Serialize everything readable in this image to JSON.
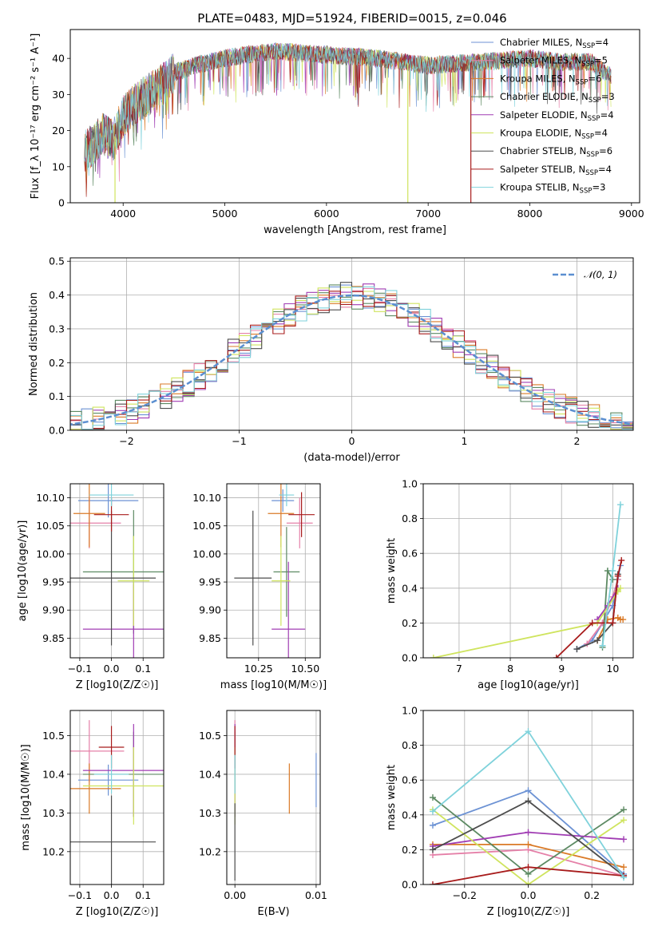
{
  "colors": [
    "#6c92d4",
    "#e580a8",
    "#da7a27",
    "#5d8a63",
    "#a03cb3",
    "#cfe45e",
    "#4d4d4d",
    "#a81c1c",
    "#7fd2db"
  ],
  "chart_data": [
    {
      "type": "line",
      "title": "PLATE=0483, MJD=51924, FIBERID=0015, z=0.046",
      "xlabel": "wavelength [Angstrom, rest frame]",
      "ylabel": "Flux [f_λ 10⁻¹⁷ erg cm⁻² s⁻¹ A⁻¹]",
      "xlim": [
        3480,
        9080
      ],
      "ylim": [
        0,
        48
      ],
      "xticks": [
        4000,
        5000,
        6000,
        7000,
        8000,
        9000
      ],
      "yticks": [
        0,
        10,
        20,
        30,
        40
      ],
      "legend_position": "top-right",
      "continuum": {
        "x": [
          3620,
          3700,
          3800,
          3900,
          4000,
          4100,
          4200,
          4300,
          4400,
          4500,
          4700,
          5000,
          5200,
          5500,
          6000,
          6500,
          7000,
          7500,
          8000,
          8300,
          8600,
          8800
        ],
        "y": [
          14,
          16,
          19,
          17,
          24,
          27,
          29,
          31,
          33,
          36,
          38,
          40,
          41,
          42,
          41,
          40,
          38,
          39,
          40,
          39,
          39,
          35
        ]
      },
      "dropouts": [
        {
          "x": 3920,
          "ymin": 0,
          "series": 5
        },
        {
          "x": 6800,
          "ymin": 0,
          "series": 5
        },
        {
          "x": 7420,
          "ymin": 0,
          "series": 7
        }
      ],
      "series": [
        {
          "name": "Chabrier MILES, N",
          "sub": "SSP",
          "n": "=4"
        },
        {
          "name": "Salpeter MILES, N",
          "sub": "SSP",
          "n": "=5"
        },
        {
          "name": "Kroupa MILES, N",
          "sub": "SSP",
          "n": "=6"
        },
        {
          "name": "Chabrier ELODIE, N",
          "sub": "SSP",
          "n": "=3"
        },
        {
          "name": "Salpeter ELODIE, N",
          "sub": "SSP",
          "n": "=4"
        },
        {
          "name": "Kroupa ELODIE, N",
          "sub": "SSP",
          "n": "=4"
        },
        {
          "name": "Chabrier STELIB, N",
          "sub": "SSP",
          "n": "=6"
        },
        {
          "name": "Salpeter STELIB, N",
          "sub": "SSP",
          "n": "=4"
        },
        {
          "name": "Kroupa STELIB, N",
          "sub": "SSP",
          "n": "=3"
        }
      ]
    },
    {
      "type": "histogram",
      "xlabel": "(data-model)/error",
      "ylabel": "Normed distribution",
      "xlim": [
        -2.5,
        2.5
      ],
      "ylim": [
        0,
        0.51
      ],
      "xticks": [
        -2,
        -1,
        0,
        1,
        2
      ],
      "yticks": [
        0.0,
        0.1,
        0.2,
        0.3,
        0.4,
        0.5
      ],
      "grid": true,
      "legend_position": "top-right",
      "reference": {
        "label": "𝒩(0, 1)",
        "mean": 0,
        "sigma": 1
      },
      "bin_width": 0.1
    },
    {
      "type": "errorbar",
      "xlabel": "Z [log10(Z/Z☉)]",
      "ylabel": "age  [log10(age/yr)]",
      "xlim": [
        -0.13,
        0.165
      ],
      "ylim": [
        9.815,
        10.125
      ],
      "xticks": [
        -0.1,
        0.0,
        0.1
      ],
      "yticks": [
        9.85,
        9.9,
        9.95,
        10.0,
        10.05,
        10.1
      ],
      "grid": true,
      "points": [
        {
          "x": -0.01,
          "y": 10.095,
          "xerr": 0.095,
          "yerr": 0.03
        },
        {
          "x": -0.07,
          "y": 10.055,
          "xerr": 0.1,
          "yerr": 0.045
        },
        {
          "x": -0.07,
          "y": 10.072,
          "xerr": 0.05,
          "yerr": 0.06
        },
        {
          "x": 0.07,
          "y": 9.968,
          "xerr": 0.16,
          "yerr": 0.11
        },
        {
          "x": 0.07,
          "y": 9.866,
          "xerr": 0.16,
          "yerr": 0.08
        },
        {
          "x": 0.07,
          "y": 9.952,
          "xerr": 0.05,
          "yerr": 0.08
        },
        {
          "x": 0.0,
          "y": 9.957,
          "xerr": 0.14,
          "yerr": 0.12
        },
        {
          "x": 0.0,
          "y": 10.07,
          "xerr": 0.055,
          "yerr": 0.03
        },
        {
          "x": 0.0,
          "y": 10.105,
          "xerr": 0.07,
          "yerr": 0.02
        }
      ]
    },
    {
      "type": "errorbar",
      "xlabel": "mass [log10(M/M☉)]",
      "ylabel": "",
      "xlim": [
        10.08,
        10.58
      ],
      "ylim": [
        9.815,
        10.125
      ],
      "xticks": [
        10.25,
        10.5
      ],
      "yticks": [
        9.85,
        9.9,
        9.95,
        10.0,
        10.05,
        10.1
      ],
      "grid": true,
      "points": [
        {
          "x": 10.38,
          "y": 10.095,
          "xerr": 0.06,
          "yerr": 0.02
        },
        {
          "x": 10.47,
          "y": 10.055,
          "xerr": 0.07,
          "yerr": 0.045
        },
        {
          "x": 10.37,
          "y": 10.072,
          "xerr": 0.07,
          "yerr": 0.06
        },
        {
          "x": 10.4,
          "y": 9.968,
          "xerr": 0.07,
          "yerr": 0.08
        },
        {
          "x": 10.41,
          "y": 9.866,
          "xerr": 0.09,
          "yerr": 0.12
        },
        {
          "x": 10.37,
          "y": 9.952,
          "xerr": 0.05,
          "yerr": 0.08
        },
        {
          "x": 10.22,
          "y": 9.957,
          "xerr": 0.1,
          "yerr": 0.12
        },
        {
          "x": 10.48,
          "y": 10.07,
          "xerr": 0.07,
          "yerr": 0.04
        },
        {
          "x": 10.4,
          "y": 10.105,
          "xerr": 0.04,
          "yerr": 0.02
        }
      ]
    },
    {
      "type": "line",
      "xlabel": "age  [log10(age/yr)]",
      "ylabel": "mass weight",
      "xlim": [
        6.3,
        10.4
      ],
      "ylim": [
        0,
        1.0
      ],
      "xticks": [
        7,
        8,
        9,
        10
      ],
      "yticks": [
        0.0,
        0.2,
        0.4,
        0.6,
        0.8,
        1.0
      ],
      "grid": true,
      "series": [
        {
          "x": [
            9.3,
            9.6,
            9.8,
            10.0,
            10.1,
            10.15
          ],
          "y": [
            0.05,
            0.1,
            0.2,
            0.3,
            0.45,
            0.53
          ]
        },
        {
          "x": [
            9.5,
            9.8,
            10.0,
            10.1
          ],
          "y": [
            0.08,
            0.2,
            0.35,
            0.45
          ]
        },
        {
          "x": [
            9.7,
            9.9,
            10.1,
            10.15,
            10.2
          ],
          "y": [
            0.1,
            0.22,
            0.23,
            0.22,
            0.22
          ]
        },
        {
          "x": [
            9.8,
            9.9,
            10.0
          ],
          "y": [
            0.06,
            0.5,
            0.45
          ]
        },
        {
          "x": [
            9.7,
            9.9,
            10.1
          ],
          "y": [
            0.22,
            0.3,
            0.4
          ]
        },
        {
          "x": [
            6.5,
            9.7,
            10.1,
            10.15
          ],
          "y": [
            0.0,
            0.2,
            0.38,
            0.4
          ]
        },
        {
          "x": [
            9.3,
            9.7,
            10.0,
            10.1
          ],
          "y": [
            0.05,
            0.1,
            0.2,
            0.48
          ]
        },
        {
          "x": [
            8.9,
            9.6,
            10.0,
            10.1,
            10.17
          ],
          "y": [
            0.0,
            0.2,
            0.2,
            0.47,
            0.56
          ]
        },
        {
          "x": [
            9.8,
            10.0,
            10.15
          ],
          "y": [
            0.07,
            0.5,
            0.88
          ]
        }
      ]
    },
    {
      "type": "errorbar",
      "xlabel": "Z [log10(Z/Z☉)]",
      "ylabel": "mass [log10(M/M☉)]",
      "xlim": [
        -0.13,
        0.165
      ],
      "ylim": [
        10.115,
        10.565
      ],
      "xticks": [
        -0.1,
        0.0,
        0.1
      ],
      "yticks": [
        10.2,
        10.3,
        10.4,
        10.5
      ],
      "grid": true,
      "points": [
        {
          "x": -0.01,
          "y": 10.385,
          "xerr": 0.095,
          "yerr": 0.04
        },
        {
          "x": -0.07,
          "y": 10.46,
          "xerr": 0.11,
          "yerr": 0.08
        },
        {
          "x": -0.07,
          "y": 10.363,
          "xerr": 0.1,
          "yerr": 0.065
        },
        {
          "x": 0.07,
          "y": 10.4,
          "xerr": 0.16,
          "yerr": 0.11
        },
        {
          "x": 0.07,
          "y": 10.41,
          "xerr": 0.16,
          "yerr": 0.12
        },
        {
          "x": 0.07,
          "y": 10.37,
          "xerr": 0.16,
          "yerr": 0.1
        },
        {
          "x": 0.0,
          "y": 10.225,
          "xerr": 0.14,
          "yerr": 0.12
        },
        {
          "x": 0.0,
          "y": 10.47,
          "xerr": 0.04,
          "yerr": 0.055
        },
        {
          "x": 0.0,
          "y": 10.4,
          "xerr": 0.055,
          "yerr": 0.05
        }
      ]
    },
    {
      "type": "errorbar",
      "xlabel": "E(B-V)",
      "ylabel": "",
      "xlim": [
        -0.001,
        0.0105
      ],
      "ylim": [
        10.115,
        10.565
      ],
      "xticks": [
        0.0,
        0.01
      ],
      "yticks": [
        10.2,
        10.3,
        10.4,
        10.5
      ],
      "grid": true,
      "points": [
        {
          "x": 0.01,
          "y": 10.385,
          "yerr": 0.07
        },
        {
          "x": 0.0,
          "y": 10.46,
          "yerr": 0.08
        },
        {
          "x": 0.0067,
          "y": 10.363,
          "yerr": 0.065
        },
        {
          "x": 0.0,
          "y": 10.4,
          "yerr": 0.11
        },
        {
          "x": 0.0,
          "y": 10.41,
          "yerr": 0.12
        },
        {
          "x": 0.0,
          "y": 10.37,
          "yerr": 0.1
        },
        {
          "x": 0.0,
          "y": 10.225,
          "yerr": 0.1
        },
        {
          "x": 0.0,
          "y": 10.47,
          "yerr": 0.055
        },
        {
          "x": 0.0,
          "y": 10.4,
          "yerr": 0.05
        }
      ]
    },
    {
      "type": "line",
      "xlabel": "Z [log10(Z/Z☉)]",
      "ylabel": "mass weight",
      "xlim": [
        -0.33,
        0.33
      ],
      "ylim": [
        0,
        1.0
      ],
      "xticks": [
        -0.2,
        0.0,
        0.2
      ],
      "yticks": [
        0.0,
        0.2,
        0.4,
        0.6,
        0.8,
        1.0
      ],
      "grid": true,
      "series": [
        {
          "x": [
            -0.3,
            0.0,
            0.3
          ],
          "y": [
            0.34,
            0.54,
            0.06
          ]
        },
        {
          "x": [
            -0.3,
            0.0,
            0.3
          ],
          "y": [
            0.17,
            0.2,
            0.05
          ]
        },
        {
          "x": [
            -0.3,
            0.0,
            0.3
          ],
          "y": [
            0.23,
            0.23,
            0.1
          ]
        },
        {
          "x": [
            -0.3,
            0.0,
            0.3
          ],
          "y": [
            0.5,
            0.06,
            0.43
          ]
        },
        {
          "x": [
            -0.3,
            0.0,
            0.3
          ],
          "y": [
            0.22,
            0.3,
            0.26
          ]
        },
        {
          "x": [
            -0.3,
            0.0,
            0.3
          ],
          "y": [
            0.43,
            0.0,
            0.37
          ]
        },
        {
          "x": [
            -0.3,
            0.0,
            0.3
          ],
          "y": [
            0.2,
            0.48,
            0.05
          ]
        },
        {
          "x": [
            -0.3,
            0.0,
            0.3
          ],
          "y": [
            0.0,
            0.1,
            0.05
          ]
        },
        {
          "x": [
            -0.3,
            0.0,
            0.3
          ],
          "y": [
            0.42,
            0.88,
            0.04
          ]
        }
      ]
    }
  ]
}
